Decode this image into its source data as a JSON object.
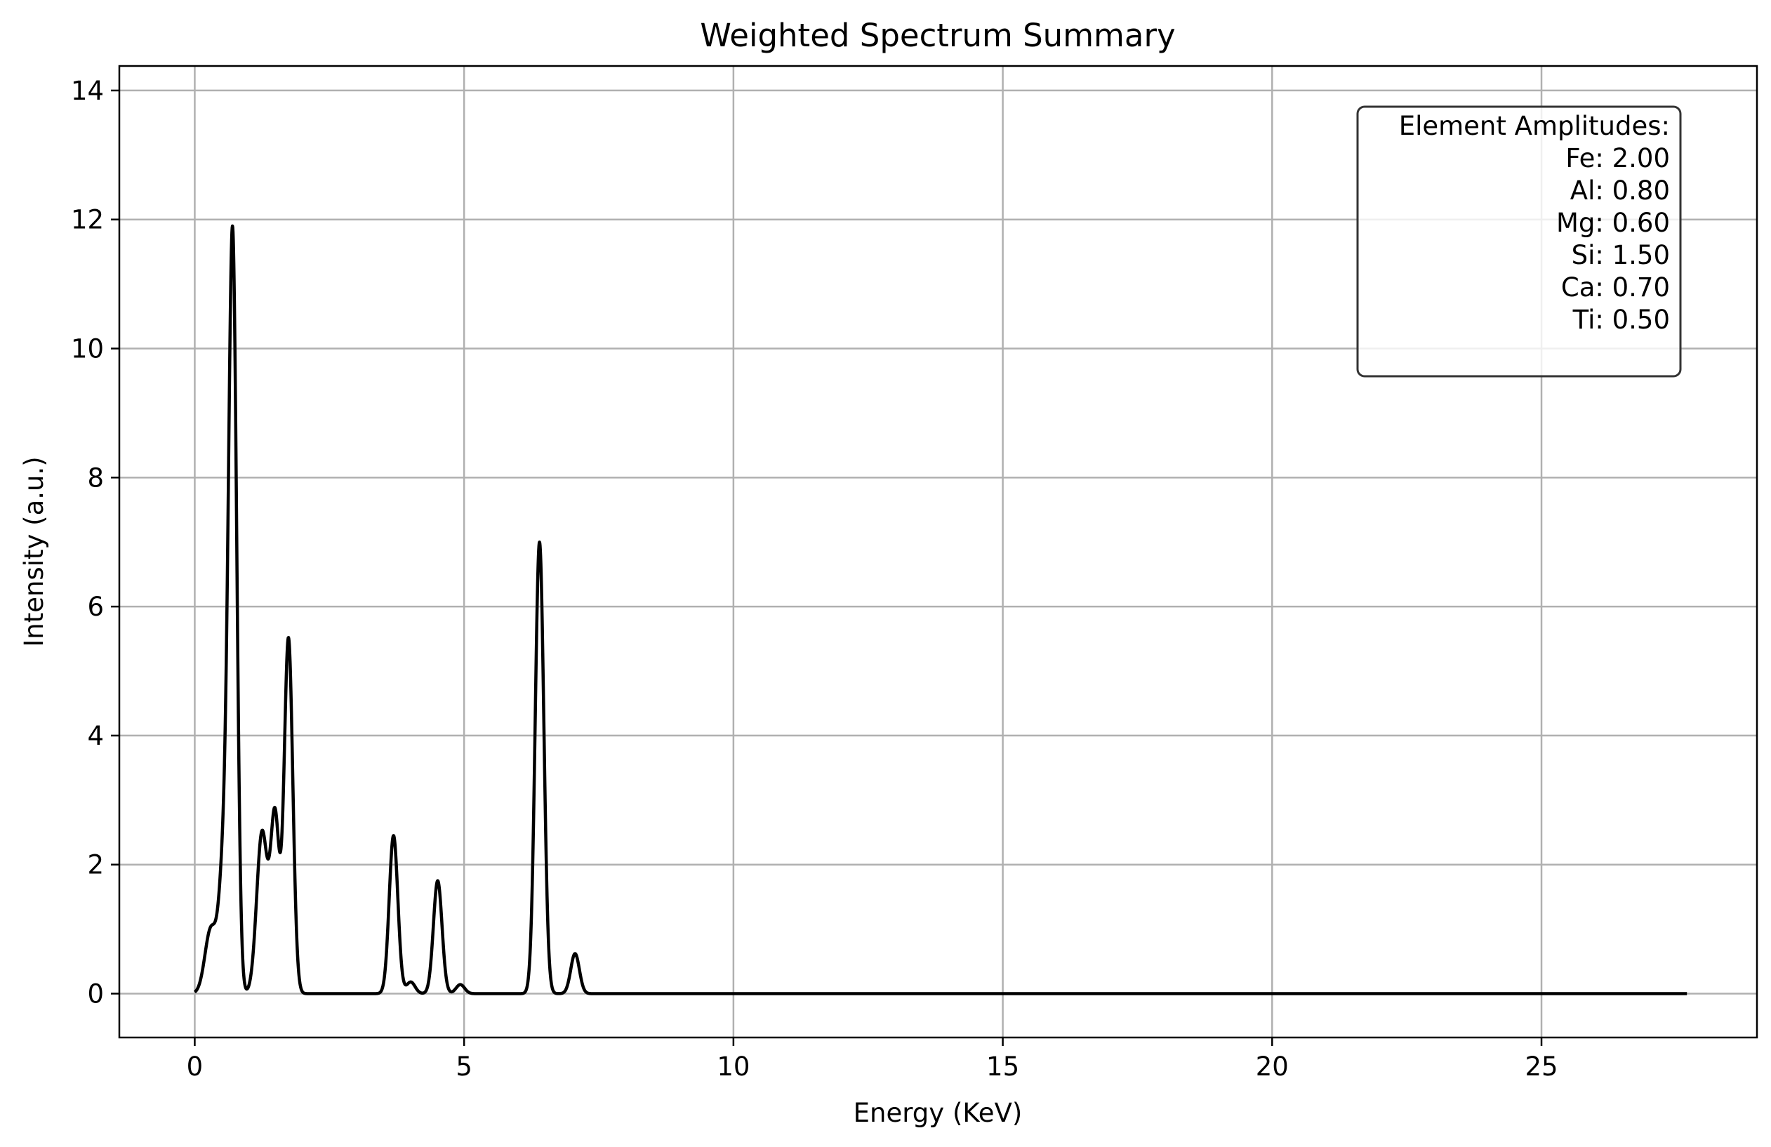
{
  "chart_data": {
    "type": "line",
    "title": "Weighted Spectrum Summary",
    "xlabel": "Energy (KeV)",
    "ylabel": "Intensity (a.u.)",
    "xlim": [
      -1.4,
      29.0
    ],
    "ylim": [
      -0.68,
      14.38
    ],
    "x_ticks": [
      0,
      5,
      10,
      15,
      20,
      25
    ],
    "y_ticks": [
      0,
      2,
      4,
      6,
      8,
      10,
      12,
      14
    ],
    "grid": true,
    "line_color": "#000000",
    "x_range": [
      0,
      27.7
    ],
    "peaks": [
      {
        "center": 0.3,
        "amplitude": 1.0,
        "sigma": 0.11
      },
      {
        "center": 0.55,
        "amplitude": 2.1,
        "sigma": 0.09
      },
      {
        "center": 0.705,
        "amplitude": 11.4,
        "sigma": 0.075
      },
      {
        "center": 1.25,
        "amplitude": 2.5,
        "sigma": 0.1
      },
      {
        "center": 1.49,
        "amplitude": 2.7,
        "sigma": 0.08
      },
      {
        "center": 1.74,
        "amplitude": 5.5,
        "sigma": 0.08
      },
      {
        "center": 3.69,
        "amplitude": 2.45,
        "sigma": 0.08
      },
      {
        "center": 4.01,
        "amplitude": 0.18,
        "sigma": 0.08
      },
      {
        "center": 4.51,
        "amplitude": 1.75,
        "sigma": 0.08
      },
      {
        "center": 4.93,
        "amplitude": 0.14,
        "sigma": 0.08
      },
      {
        "center": 6.4,
        "amplitude": 7.0,
        "sigma": 0.08
      },
      {
        "center": 7.06,
        "amplitude": 0.62,
        "sigma": 0.08
      }
    ],
    "annotation": {
      "title": "Element Amplitudes:",
      "lines": [
        "Fe: 2.00",
        "Al: 0.80",
        "Mg: 0.60",
        "Si: 1.50",
        "Ca: 0.70",
        "Ti: 0.50"
      ],
      "placement": "top-right"
    }
  }
}
